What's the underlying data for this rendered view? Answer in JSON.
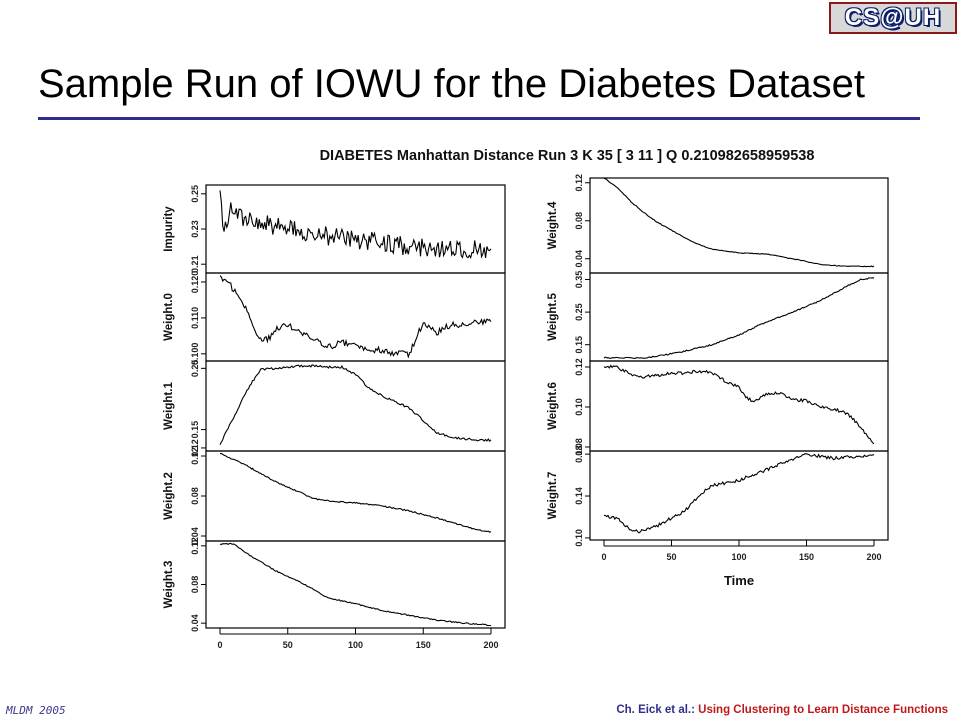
{
  "logo": {
    "text": "CS@UH"
  },
  "slide": {
    "title": "Sample Run of IOWU for the Diabetes Dataset"
  },
  "footer": {
    "left": "MLDM 2005",
    "author": "Ch. Eick et al.",
    "sep": ": ",
    "subtitle": "Using Clustering to Learn Distance Functions"
  },
  "colors": {
    "title_rule": "#2e2e8e",
    "footer_text": "#2e2e8e",
    "footer_highlight": "#c01818",
    "line": "#000000"
  },
  "chart_data": {
    "type": "line",
    "title": "DIABETES Manhattan Distance Run 3 K 35 [ 3 11 ] Q 0.210982658959538",
    "xlabel": "Time",
    "xlim": [
      0,
      200
    ],
    "x_ticks": [
      0,
      50,
      100,
      150,
      200
    ],
    "panels": [
      {
        "name": "Impurity",
        "column": 0,
        "ylim": [
          0.205,
          0.255
        ],
        "y_ticks": [
          "0.21",
          "0.23",
          "0.25"
        ],
        "y_tick_values": [
          0.21,
          0.23,
          0.25
        ],
        "profile": [
          [
            0,
            0.252
          ],
          [
            2,
            0.228
          ],
          [
            8,
            0.24
          ],
          [
            20,
            0.236
          ],
          [
            40,
            0.232
          ],
          [
            60,
            0.228
          ],
          [
            80,
            0.226
          ],
          [
            100,
            0.224
          ],
          [
            120,
            0.222
          ],
          [
            140,
            0.22
          ],
          [
            160,
            0.219
          ],
          [
            180,
            0.219
          ],
          [
            200,
            0.218
          ]
        ],
        "noise": 0.0055
      },
      {
        "name": "Weight.0",
        "column": 0,
        "ylim": [
          0.098,
          0.1225
        ],
        "y_ticks": [
          "0.100",
          "0.110",
          "0.120"
        ],
        "y_tick_values": [
          0.1,
          0.11,
          0.12
        ],
        "profile": [
          [
            0,
            0.121
          ],
          [
            8,
            0.119
          ],
          [
            20,
            0.112
          ],
          [
            28,
            0.104
          ],
          [
            35,
            0.104
          ],
          [
            42,
            0.107
          ],
          [
            50,
            0.108
          ],
          [
            60,
            0.106
          ],
          [
            70,
            0.104
          ],
          [
            80,
            0.102
          ],
          [
            90,
            0.103
          ],
          [
            100,
            0.103
          ],
          [
            110,
            0.101
          ],
          [
            120,
            0.101
          ],
          [
            130,
            0.1
          ],
          [
            140,
            0.1
          ],
          [
            148,
            0.107
          ],
          [
            150,
            0.108
          ],
          [
            160,
            0.106
          ],
          [
            170,
            0.108
          ],
          [
            180,
            0.108
          ],
          [
            190,
            0.109
          ],
          [
            200,
            0.109
          ]
        ],
        "noise": 0.0009
      },
      {
        "name": "Weight.1",
        "column": 0,
        "ylim": [
          0.115,
          0.262
        ],
        "y_ticks": [
          "0.12",
          "0.15",
          "0.25"
        ],
        "y_tick_values": [
          0.12,
          0.15,
          0.25
        ],
        "profile": [
          [
            0,
            0.125
          ],
          [
            10,
            0.17
          ],
          [
            20,
            0.215
          ],
          [
            30,
            0.248
          ],
          [
            40,
            0.25
          ],
          [
            50,
            0.252
          ],
          [
            60,
            0.254
          ],
          [
            70,
            0.254
          ],
          [
            80,
            0.252
          ],
          [
            90,
            0.252
          ],
          [
            100,
            0.24
          ],
          [
            110,
            0.218
          ],
          [
            120,
            0.205
          ],
          [
            130,
            0.195
          ],
          [
            140,
            0.185
          ],
          [
            150,
            0.165
          ],
          [
            160,
            0.145
          ],
          [
            170,
            0.138
          ],
          [
            180,
            0.135
          ],
          [
            190,
            0.133
          ],
          [
            200,
            0.133
          ]
        ],
        "noise": 0.0018
      },
      {
        "name": "Weight.2",
        "column": 0,
        "ylim": [
          0.035,
          0.125
        ],
        "y_ticks": [
          "0.04",
          "0.08",
          "0.12"
        ],
        "y_tick_values": [
          0.04,
          0.08,
          0.12
        ],
        "profile": [
          [
            0,
            0.123
          ],
          [
            20,
            0.11
          ],
          [
            40,
            0.095
          ],
          [
            60,
            0.083
          ],
          [
            70,
            0.077
          ],
          [
            80,
            0.075
          ],
          [
            100,
            0.073
          ],
          [
            120,
            0.07
          ],
          [
            140,
            0.065
          ],
          [
            160,
            0.058
          ],
          [
            180,
            0.05
          ],
          [
            190,
            0.046
          ],
          [
            200,
            0.044
          ]
        ],
        "noise": 0.0007
      },
      {
        "name": "Weight.3",
        "column": 0,
        "ylim": [
          0.035,
          0.125
        ],
        "y_ticks": [
          "0.04",
          "0.08",
          "0.12"
        ],
        "y_tick_values": [
          0.04,
          0.08,
          0.12
        ],
        "profile": [
          [
            0,
            0.122
          ],
          [
            10,
            0.122
          ],
          [
            20,
            0.112
          ],
          [
            40,
            0.095
          ],
          [
            60,
            0.082
          ],
          [
            80,
            0.066
          ],
          [
            100,
            0.06
          ],
          [
            120,
            0.053
          ],
          [
            140,
            0.048
          ],
          [
            160,
            0.043
          ],
          [
            180,
            0.04
          ],
          [
            200,
            0.038
          ]
        ],
        "noise": 0.0006
      },
      {
        "name": "Weight.4",
        "column": 1,
        "ylim": [
          0.025,
          0.125
        ],
        "y_ticks": [
          "0.04",
          "0.08",
          "0.12"
        ],
        "y_tick_values": [
          0.04,
          0.08,
          0.12
        ],
        "profile": [
          [
            0,
            0.125
          ],
          [
            10,
            0.115
          ],
          [
            20,
            0.1
          ],
          [
            30,
            0.088
          ],
          [
            40,
            0.078
          ],
          [
            50,
            0.07
          ],
          [
            60,
            0.062
          ],
          [
            70,
            0.055
          ],
          [
            80,
            0.05
          ],
          [
            100,
            0.046
          ],
          [
            120,
            0.045
          ],
          [
            140,
            0.04
          ],
          [
            160,
            0.034
          ],
          [
            180,
            0.032
          ],
          [
            200,
            0.032
          ]
        ],
        "noise": 0.0004
      },
      {
        "name": "Weight.5",
        "column": 1,
        "ylim": [
          0.1,
          0.37
        ],
        "y_ticks": [
          "0.15",
          "0.25",
          "0.35"
        ],
        "y_tick_values": [
          0.15,
          0.25,
          0.35
        ],
        "profile": [
          [
            0,
            0.11
          ],
          [
            20,
            0.11
          ],
          [
            30,
            0.11
          ],
          [
            40,
            0.115
          ],
          [
            60,
            0.13
          ],
          [
            80,
            0.15
          ],
          [
            100,
            0.18
          ],
          [
            120,
            0.22
          ],
          [
            140,
            0.25
          ],
          [
            160,
            0.285
          ],
          [
            180,
            0.33
          ],
          [
            190,
            0.35
          ],
          [
            200,
            0.355
          ]
        ],
        "noise": 0.002
      },
      {
        "name": "Weight.6",
        "column": 1,
        "ylim": [
          0.078,
          0.123
        ],
        "y_ticks": [
          "0.08",
          "0.10",
          "0.12"
        ],
        "y_tick_values": [
          0.08,
          0.1,
          0.12
        ],
        "profile": [
          [
            0,
            0.12
          ],
          [
            10,
            0.12
          ],
          [
            20,
            0.116
          ],
          [
            30,
            0.115
          ],
          [
            40,
            0.116
          ],
          [
            50,
            0.117
          ],
          [
            60,
            0.117
          ],
          [
            70,
            0.118
          ],
          [
            80,
            0.117
          ],
          [
            90,
            0.113
          ],
          [
            100,
            0.11
          ],
          [
            105,
            0.105
          ],
          [
            110,
            0.103
          ],
          [
            120,
            0.106
          ],
          [
            130,
            0.107
          ],
          [
            140,
            0.104
          ],
          [
            150,
            0.103
          ],
          [
            160,
            0.1
          ],
          [
            170,
            0.099
          ],
          [
            180,
            0.097
          ],
          [
            190,
            0.09
          ],
          [
            200,
            0.082
          ]
        ],
        "noise": 0.0008
      },
      {
        "name": "Weight.7",
        "column": 1,
        "ylim": [
          0.098,
          0.183
        ],
        "y_ticks": [
          "0.10",
          "0.14",
          "0.18"
        ],
        "y_tick_values": [
          0.1,
          0.14,
          0.18
        ],
        "profile": [
          [
            0,
            0.12
          ],
          [
            5,
            0.12
          ],
          [
            10,
            0.118
          ],
          [
            20,
            0.108
          ],
          [
            25,
            0.106
          ],
          [
            30,
            0.108
          ],
          [
            40,
            0.112
          ],
          [
            60,
            0.126
          ],
          [
            70,
            0.14
          ],
          [
            80,
            0.15
          ],
          [
            100,
            0.155
          ],
          [
            120,
            0.165
          ],
          [
            140,
            0.175
          ],
          [
            150,
            0.18
          ],
          [
            160,
            0.178
          ],
          [
            170,
            0.176
          ],
          [
            180,
            0.178
          ],
          [
            190,
            0.177
          ],
          [
            200,
            0.18
          ]
        ],
        "noise": 0.0015
      }
    ]
  }
}
